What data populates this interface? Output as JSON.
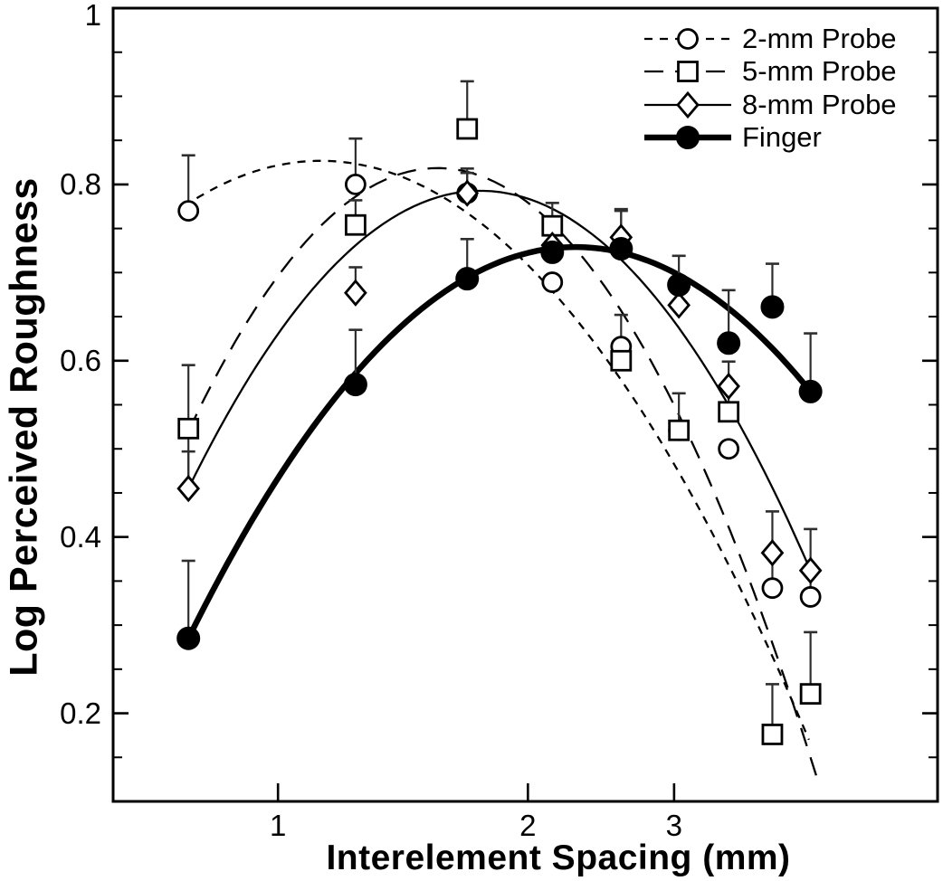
{
  "figure": {
    "background": "#ffffff",
    "ink": "#000000",
    "error_bar_color": "#2e2e2e"
  },
  "chart_data": {
    "type": "scatter",
    "title": "",
    "xlabel": "Interelement Spacing (mm)",
    "ylabel": "Log Perceived Roughness",
    "x_scale": "log10",
    "xlim": [
      0.633,
      6.23
    ],
    "ylim": [
      0.1,
      1.0
    ],
    "x_ticks": [
      {
        "value": 1,
        "label": "1"
      },
      {
        "value": 2,
        "label": "2"
      },
      {
        "value": 3,
        "label": "3"
      }
    ],
    "y_ticks_major": [
      {
        "value": 0.2,
        "label": "0.2"
      },
      {
        "value": 0.4,
        "label": "0.4"
      },
      {
        "value": 0.6,
        "label": "0.6"
      },
      {
        "value": 0.8,
        "label": "0.8"
      },
      {
        "value": 1.0,
        "label": "1"
      }
    ],
    "y_minor_tick_step": 0.05,
    "grid": false,
    "legend_position": "top-right",
    "x": [
      0.78,
      1.24,
      1.69,
      2.14,
      2.59,
      3.04,
      3.49,
      3.94,
      4.38
    ],
    "series": [
      {
        "name": "2-mm Probe",
        "marker": "open-circle",
        "line": "dash",
        "values": [
          0.77,
          0.8,
          0.79,
          0.689,
          0.616,
          0.521,
          0.5,
          0.342,
          0.332
        ],
        "err_up": [
          0.063,
          0.052,
          0.028,
          0,
          0.036,
          0,
          0,
          0,
          0
        ],
        "err_down": [
          0,
          0,
          0,
          0,
          0,
          0,
          0,
          0,
          0
        ],
        "fit_anchors": [
          [
            0.77,
            0.775
          ],
          [
            1.35,
            0.815
          ],
          [
            4.36,
            0.17
          ]
        ],
        "fit_range": [
          0.77,
          4.36
        ]
      },
      {
        "name": "5-mm Probe",
        "marker": "open-square",
        "line": "long-dash",
        "values": [
          0.523,
          0.754,
          0.863,
          0.753,
          0.6,
          0.521,
          0.542,
          0.176,
          0.222
        ],
        "err_up": [
          0.072,
          0.028,
          0.054,
          0.026,
          0,
          0.042,
          0.025,
          0.057,
          0.07
        ],
        "err_down": [
          0.068,
          0,
          0,
          0,
          0,
          0,
          0,
          0,
          0
        ],
        "fit_anchors": [
          [
            0.78,
            0.52
          ],
          [
            1.75,
            0.81
          ],
          [
            4.45,
            0.129
          ]
        ],
        "fit_range": [
          0.78,
          4.45
        ]
      },
      {
        "name": "8-mm Probe",
        "marker": "open-diamond",
        "line": "solid-thin",
        "values": [
          0.455,
          0.677,
          0.79,
          0.731,
          0.74,
          0.663,
          0.571,
          0.382,
          0.362
        ],
        "err_up": [
          0.042,
          0.029,
          0.023,
          0,
          0.03,
          0,
          0.028,
          0.047,
          0.047
        ],
        "err_down": [
          0,
          0,
          0,
          0,
          0,
          0,
          0,
          0.04,
          0.03
        ],
        "fit_anchors": [
          [
            0.78,
            0.455
          ],
          [
            1.95,
            0.787
          ],
          [
            4.38,
            0.362
          ]
        ],
        "fit_range": [
          0.78,
          4.38
        ]
      },
      {
        "name": "Finger",
        "marker": "filled-circle",
        "line": "solid-thick",
        "values": [
          0.285,
          0.573,
          0.693,
          0.723,
          0.727,
          0.686,
          0.62,
          0.661,
          0.565
        ],
        "err_up": [
          0.088,
          0.062,
          0.045,
          0,
          0.045,
          0.033,
          0.06,
          0.049,
          0.066
        ],
        "err_down": [
          0,
          0,
          0,
          0,
          0,
          0,
          0,
          0,
          0
        ],
        "fit_anchors": [
          [
            0.78,
            0.285
          ],
          [
            2.4,
            0.728
          ],
          [
            4.38,
            0.565
          ]
        ],
        "fit_range": [
          0.78,
          4.38
        ]
      }
    ]
  }
}
